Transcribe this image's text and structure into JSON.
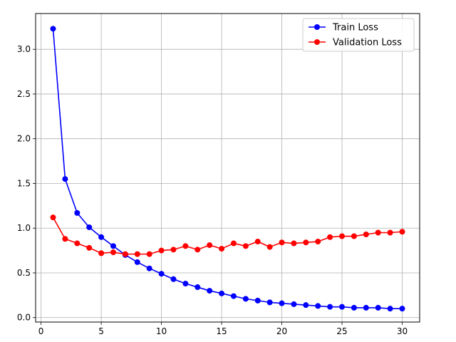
{
  "chart_data": {
    "type": "line",
    "title": "",
    "xlabel": "",
    "ylabel": "",
    "xlim": [
      -0.45,
      31.45
    ],
    "ylim": [
      -0.05,
      3.4
    ],
    "xticks": [
      0,
      5,
      10,
      15,
      20,
      25,
      30
    ],
    "xtick_labels": [
      "0",
      "5",
      "10",
      "15",
      "20",
      "25",
      "30"
    ],
    "yticks": [
      0.0,
      0.5,
      1.0,
      1.5,
      2.0,
      2.5,
      3.0
    ],
    "ytick_labels": [
      "0.0",
      "0.5",
      "1.0",
      "1.5",
      "2.0",
      "2.5",
      "3.0"
    ],
    "grid": true,
    "legend_position": "top-right",
    "x": [
      1,
      2,
      3,
      4,
      5,
      6,
      7,
      8,
      9,
      10,
      11,
      12,
      13,
      14,
      15,
      16,
      17,
      18,
      19,
      20,
      21,
      22,
      23,
      24,
      25,
      26,
      27,
      28,
      29,
      30
    ],
    "series": [
      {
        "name": "Train Loss",
        "color": "#0000ff",
        "values": [
          3.23,
          1.55,
          1.17,
          1.01,
          0.9,
          0.8,
          0.7,
          0.62,
          0.55,
          0.49,
          0.43,
          0.38,
          0.34,
          0.3,
          0.27,
          0.24,
          0.21,
          0.19,
          0.17,
          0.16,
          0.15,
          0.14,
          0.13,
          0.12,
          0.12,
          0.11,
          0.11,
          0.11,
          0.1,
          0.1
        ]
      },
      {
        "name": "Validation Loss",
        "color": "#ff0000",
        "values": [
          1.12,
          0.88,
          0.83,
          0.78,
          0.72,
          0.73,
          0.71,
          0.71,
          0.71,
          0.75,
          0.76,
          0.8,
          0.76,
          0.81,
          0.77,
          0.83,
          0.8,
          0.85,
          0.79,
          0.84,
          0.83,
          0.84,
          0.85,
          0.9,
          0.91,
          0.91,
          0.93,
          0.95,
          0.95,
          0.96
        ]
      }
    ]
  }
}
